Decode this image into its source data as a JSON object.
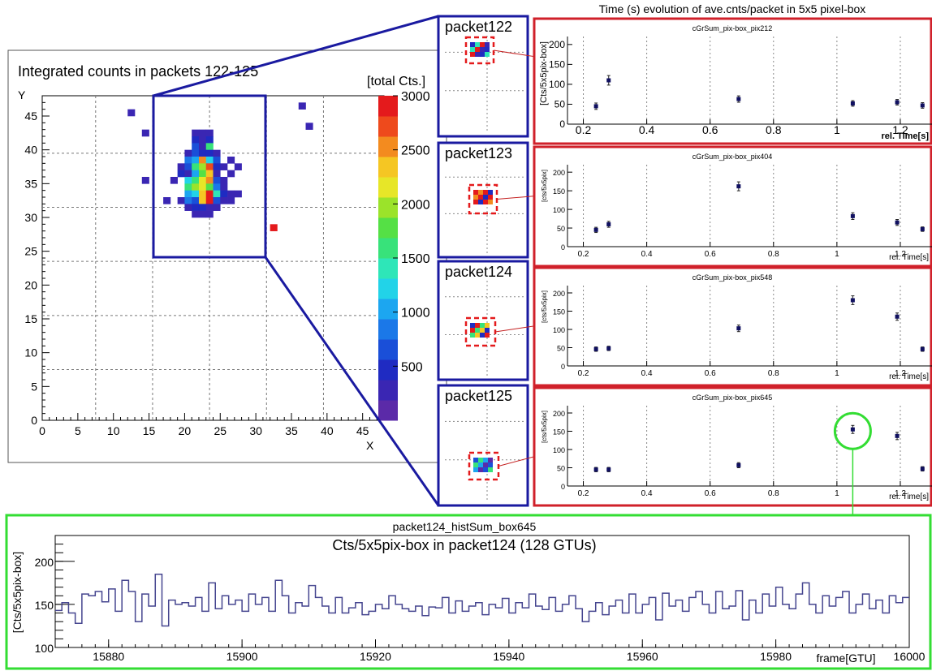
{
  "main_map": {
    "title": "Integrated counts in packets 122-125",
    "xlabel": "X",
    "ylabel": "Y",
    "x_ticks": [
      "0",
      "5",
      "10",
      "15",
      "20",
      "25",
      "30",
      "35",
      "40",
      "45"
    ],
    "y_ticks": [
      "0",
      "5",
      "10",
      "15",
      "20",
      "25",
      "30",
      "35",
      "40",
      "45"
    ],
    "colorbar_title": "[total Cts.]",
    "colorbar_ticks": [
      "500",
      "1000",
      "1500",
      "2000",
      "2500",
      "3000"
    ]
  },
  "header": {
    "time_evolution_title": "Time (s) evolution of ave.cnts/packet in 5x5 pixel-box"
  },
  "packets": [
    {
      "label": "packet122"
    },
    {
      "label": "packet123"
    },
    {
      "label": "packet124"
    },
    {
      "label": "packet125"
    }
  ],
  "chart_data": [
    {
      "type": "heatmap",
      "title": "Integrated counts in packets 122-125",
      "xlabel": "X",
      "ylabel": "Y",
      "xlim": [
        0,
        48
      ],
      "ylim": [
        0,
        48
      ],
      "zlabel": "[total Cts.]",
      "zlim": [
        0,
        3000
      ],
      "cells": [
        [
          12,
          45,
          300
        ],
        [
          14,
          42,
          300
        ],
        [
          14,
          35,
          300
        ],
        [
          36,
          46,
          300
        ],
        [
          37,
          43,
          300
        ],
        [
          32,
          28,
          3000
        ],
        [
          21,
          42,
          300
        ],
        [
          22,
          42,
          300
        ],
        [
          23,
          42,
          300
        ],
        [
          21,
          41,
          500
        ],
        [
          22,
          41,
          300
        ],
        [
          23,
          41,
          400
        ],
        [
          21,
          40,
          600
        ],
        [
          22,
          40,
          300
        ],
        [
          23,
          40,
          1500
        ],
        [
          20,
          39,
          300
        ],
        [
          21,
          39,
          700
        ],
        [
          22,
          39,
          400
        ],
        [
          23,
          39,
          500
        ],
        [
          24,
          39,
          300
        ],
        [
          20,
          38,
          800
        ],
        [
          21,
          38,
          1000
        ],
        [
          22,
          38,
          2500
        ],
        [
          23,
          38,
          1200
        ],
        [
          24,
          38,
          600
        ],
        [
          26,
          38,
          300
        ],
        [
          19,
          37,
          300
        ],
        [
          20,
          37,
          700
        ],
        [
          21,
          37,
          1600
        ],
        [
          22,
          37,
          2000
        ],
        [
          23,
          37,
          2800
        ],
        [
          24,
          37,
          500
        ],
        [
          25,
          37,
          300
        ],
        [
          27,
          37,
          300
        ],
        [
          19,
          36,
          400
        ],
        [
          20,
          36,
          300
        ],
        [
          21,
          36,
          1000
        ],
        [
          22,
          36,
          1800
        ],
        [
          23,
          36,
          2400
        ],
        [
          24,
          36,
          300
        ],
        [
          26,
          36,
          300
        ],
        [
          18,
          35,
          300
        ],
        [
          20,
          35,
          1200
        ],
        [
          21,
          35,
          1600
        ],
        [
          22,
          35,
          2200
        ],
        [
          23,
          35,
          2600
        ],
        [
          24,
          35,
          700
        ],
        [
          25,
          35,
          300
        ],
        [
          20,
          34,
          1500
        ],
        [
          21,
          34,
          1900
        ],
        [
          22,
          34,
          2100
        ],
        [
          23,
          34,
          1700
        ],
        [
          24,
          34,
          900
        ],
        [
          25,
          34,
          300
        ],
        [
          20,
          33,
          1000
        ],
        [
          21,
          33,
          1300
        ],
        [
          22,
          33,
          2400
        ],
        [
          23,
          33,
          2900
        ],
        [
          24,
          33,
          1400
        ],
        [
          25,
          33,
          500
        ],
        [
          26,
          33,
          300
        ],
        [
          27,
          33,
          300
        ],
        [
          17,
          32,
          300
        ],
        [
          19,
          32,
          300
        ],
        [
          20,
          32,
          900
        ],
        [
          21,
          32,
          700
        ],
        [
          22,
          32,
          2300
        ],
        [
          23,
          32,
          3000
        ],
        [
          24,
          32,
          600
        ],
        [
          25,
          32,
          300
        ],
        [
          26,
          32,
          300
        ],
        [
          20,
          31,
          300
        ],
        [
          21,
          31,
          500
        ],
        [
          22,
          31,
          400
        ],
        [
          23,
          31,
          300
        ],
        [
          24,
          31,
          300
        ],
        [
          21,
          30,
          300
        ],
        [
          22,
          30,
          300
        ],
        [
          23,
          30,
          300
        ]
      ]
    },
    {
      "type": "scatter",
      "title": "cGrSum_pix-box_pix212",
      "xlabel": "rel. Time[s]",
      "ylabel": "[Cts/5x5pix-box]",
      "xlim": [
        0.15,
        1.3
      ],
      "ylim": [
        0,
        220
      ],
      "x_ticks": [
        "0.2",
        "0.4",
        "0.6",
        "0.8",
        "1",
        "1.2"
      ],
      "y_ticks": [
        "0",
        "50",
        "100",
        "150",
        "200"
      ],
      "x": [
        0.24,
        0.28,
        0.69,
        1.05,
        1.19,
        1.27
      ],
      "y": [
        45,
        110,
        63,
        52,
        55,
        47
      ],
      "err": [
        8,
        12,
        8,
        7,
        7,
        7
      ]
    },
    {
      "type": "scatter",
      "title": "cGrSum_pix-box_pix404",
      "xlabel": "rel. Time[s]",
      "ylabel": "[cts/5x5pix]",
      "xlim": [
        0.15,
        1.3
      ],
      "ylim": [
        0,
        220
      ],
      "x_ticks": [
        "0.2",
        "0.4",
        "0.6",
        "0.8",
        "1",
        "1.2"
      ],
      "y_ticks": [
        "0",
        "50",
        "100",
        "150",
        "200"
      ],
      "x": [
        0.24,
        0.28,
        0.69,
        1.05,
        1.19,
        1.27
      ],
      "y": [
        45,
        60,
        162,
        82,
        65,
        47
      ],
      "err": [
        7,
        8,
        12,
        9,
        8,
        6
      ]
    },
    {
      "type": "scatter",
      "title": "cGrSum_pix-box_pix548",
      "xlabel": "rel. Time[s]",
      "ylabel": "[cts/5x5pix]",
      "xlim": [
        0.15,
        1.3
      ],
      "ylim": [
        0,
        220
      ],
      "x_ticks": [
        "0.2",
        "0.4",
        "0.6",
        "0.8",
        "1",
        "1.2"
      ],
      "y_ticks": [
        "0",
        "50",
        "100",
        "150",
        "200"
      ],
      "x": [
        0.24,
        0.28,
        0.69,
        1.05,
        1.19,
        1.27
      ],
      "y": [
        46,
        48,
        103,
        180,
        135,
        46
      ],
      "err": [
        6,
        6,
        9,
        12,
        10,
        6
      ]
    },
    {
      "type": "scatter",
      "title": "cGrSum_pix-box_pix645",
      "xlabel": "rel. Time[s]",
      "ylabel": "[cts/5x5pix]",
      "xlim": [
        0.15,
        1.3
      ],
      "ylim": [
        0,
        220
      ],
      "x_ticks": [
        "0.2",
        "0.4",
        "0.6",
        "0.8",
        "1",
        "1.2"
      ],
      "y_ticks": [
        "0",
        "50",
        "100",
        "150",
        "200"
      ],
      "x": [
        0.24,
        0.28,
        0.69,
        1.05,
        1.19,
        1.27
      ],
      "y": [
        45,
        45,
        57,
        155,
        137,
        47
      ],
      "err": [
        6,
        6,
        7,
        11,
        10,
        6
      ]
    },
    {
      "type": "line",
      "title": "Cts/5x5pix-box in packet124 (128 GTUs)",
      "subtitle": "packet124_histSum_box645",
      "xlabel": "frame[GTU]",
      "ylabel": "[Cts/5x5pix-box]",
      "xlim": [
        15872,
        16000
      ],
      "ylim": [
        100,
        230
      ],
      "x_ticks": [
        "15880",
        "15900",
        "15920",
        "15940",
        "15960",
        "15980",
        "16000"
      ],
      "y_ticks": [
        "100",
        "150",
        "200"
      ],
      "x_start": 15872,
      "values": [
        143,
        152,
        140,
        128,
        162,
        160,
        165,
        153,
        168,
        142,
        178,
        165,
        130,
        162,
        148,
        185,
        125,
        155,
        150,
        152,
        148,
        158,
        142,
        175,
        145,
        160,
        150,
        155,
        142,
        162,
        150,
        158,
        142,
        178,
        160,
        140,
        152,
        148,
        172,
        158,
        148,
        140,
        158,
        140,
        146,
        152,
        138,
        142,
        150,
        145,
        160,
        150,
        145,
        142,
        148,
        137,
        147,
        146,
        158,
        140,
        154,
        142,
        148,
        152,
        138,
        150,
        146,
        157,
        140,
        152,
        146,
        162,
        148,
        144,
        158,
        142,
        150,
        160,
        145,
        130,
        142,
        152,
        138,
        148,
        155,
        140,
        162,
        140,
        150,
        158,
        132,
        163,
        148,
        155,
        142,
        158,
        165,
        150,
        140,
        165,
        145,
        148,
        166,
        132,
        155,
        140,
        162,
        148,
        170,
        150,
        145,
        162,
        175,
        150,
        140,
        160,
        148,
        158,
        165,
        140,
        150,
        162,
        145,
        155,
        140,
        160,
        152,
        158
      ]
    }
  ]
}
